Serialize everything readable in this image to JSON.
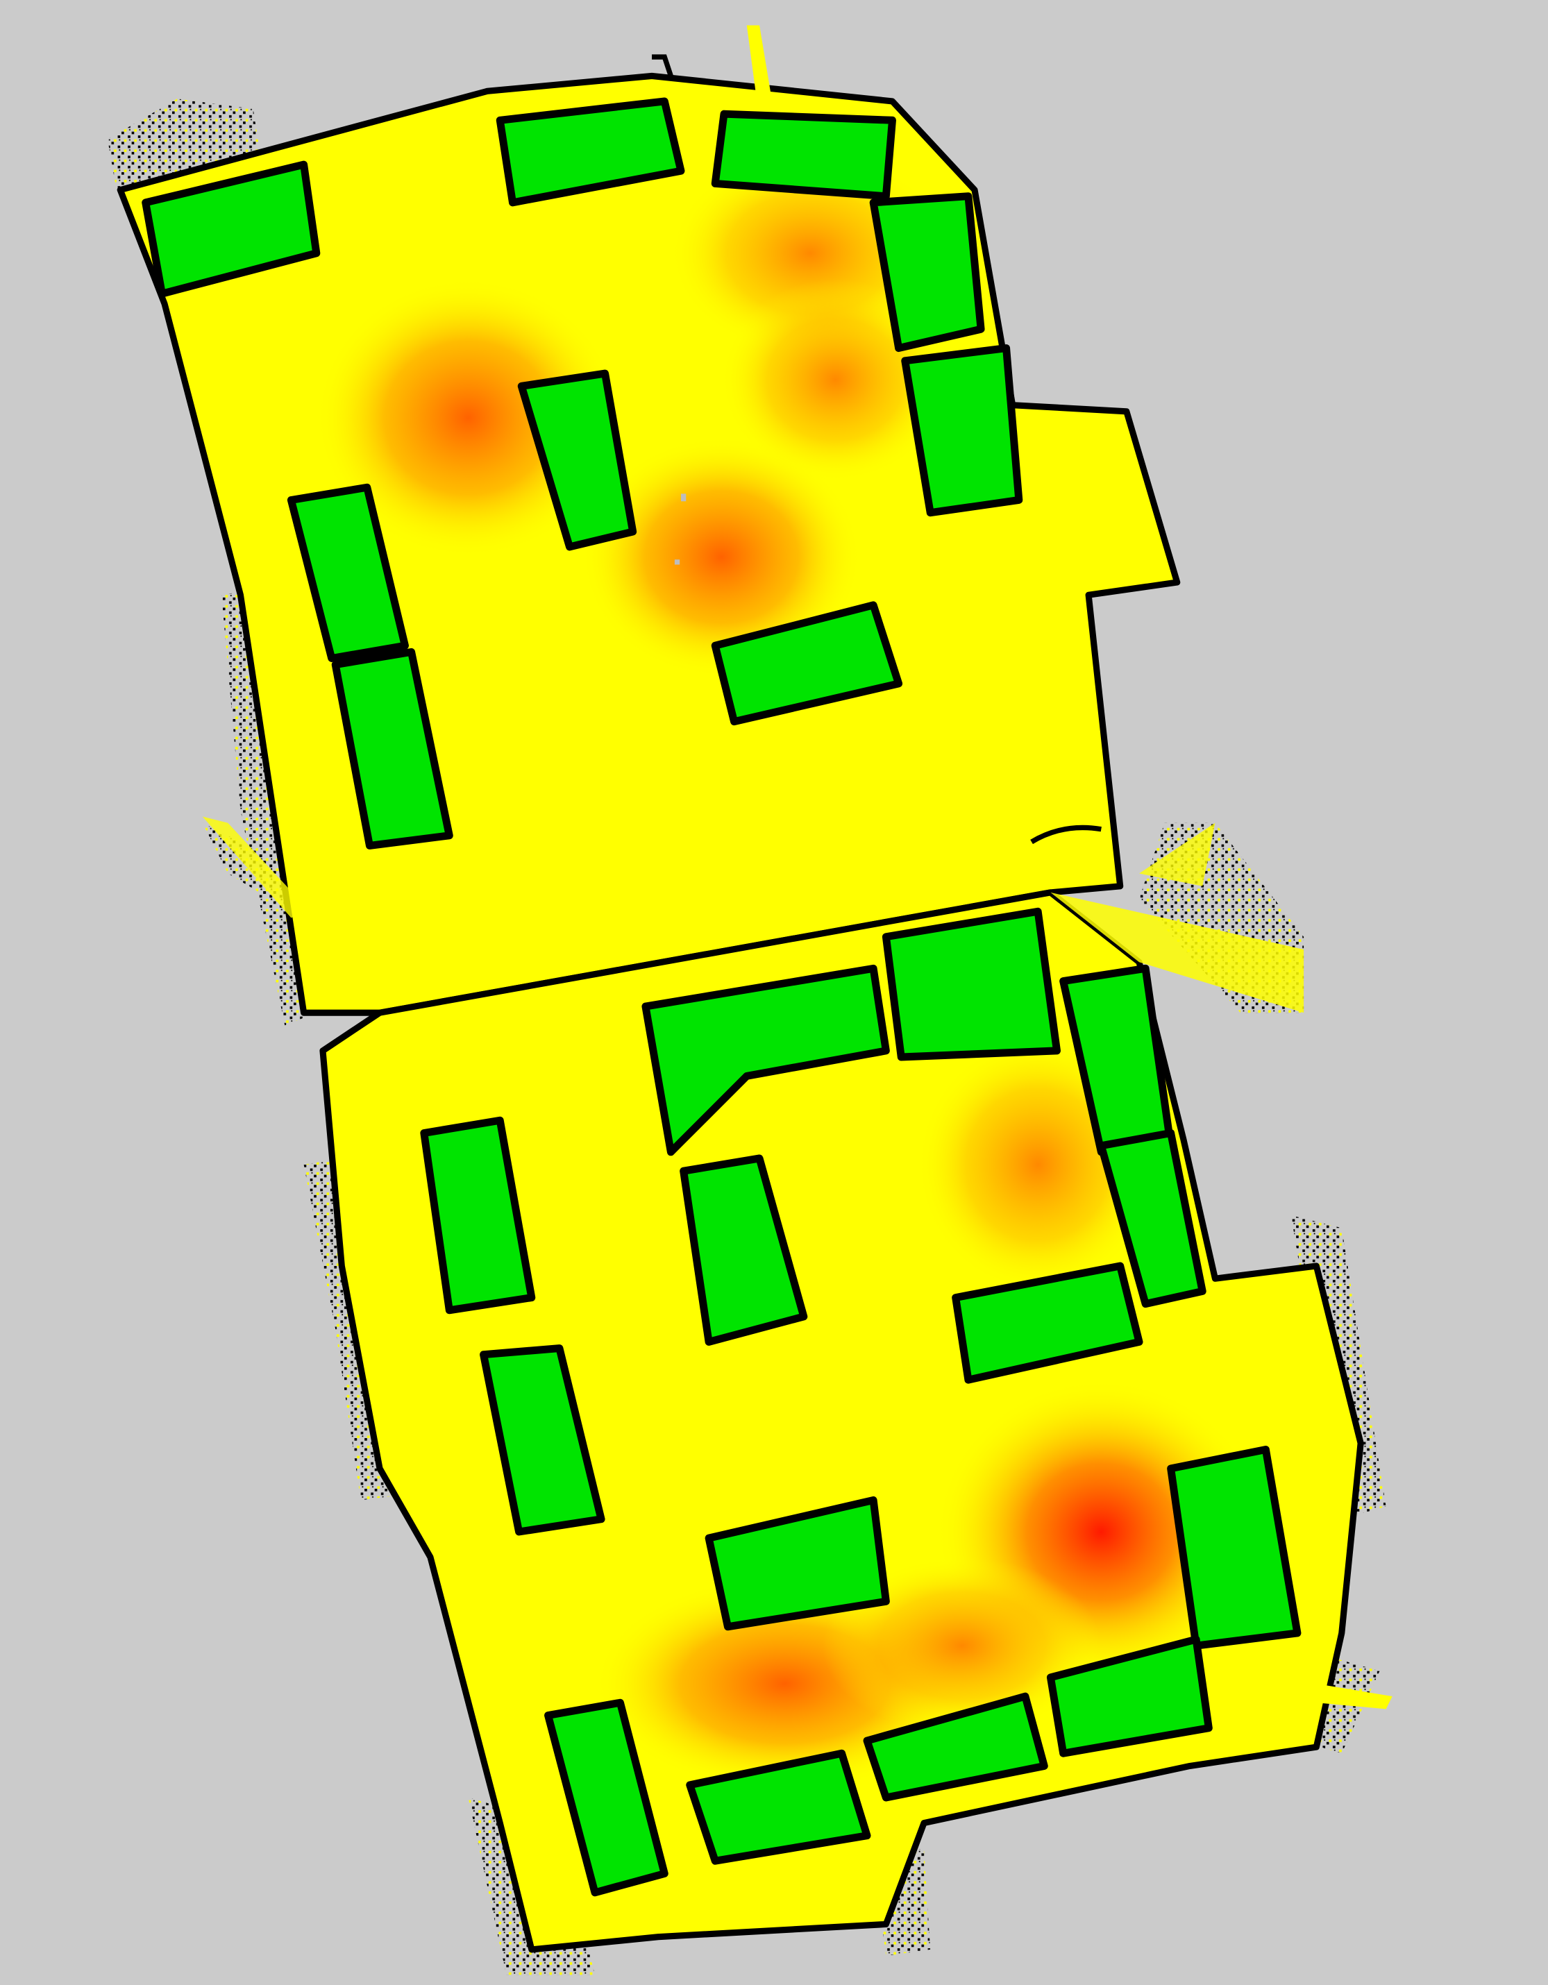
{
  "map": {
    "type": "occupancy-grid-heatmap",
    "colors": {
      "background_unknown": "#cbcbcb",
      "free_space": "#ffff00",
      "obstacle": "#000000",
      "shelf_region": "#00e400",
      "heat_low": "#ffd000",
      "heat_mid": "#ff7a00",
      "heat_high": "#ff1a00"
    },
    "legend": [],
    "labels": []
  }
}
